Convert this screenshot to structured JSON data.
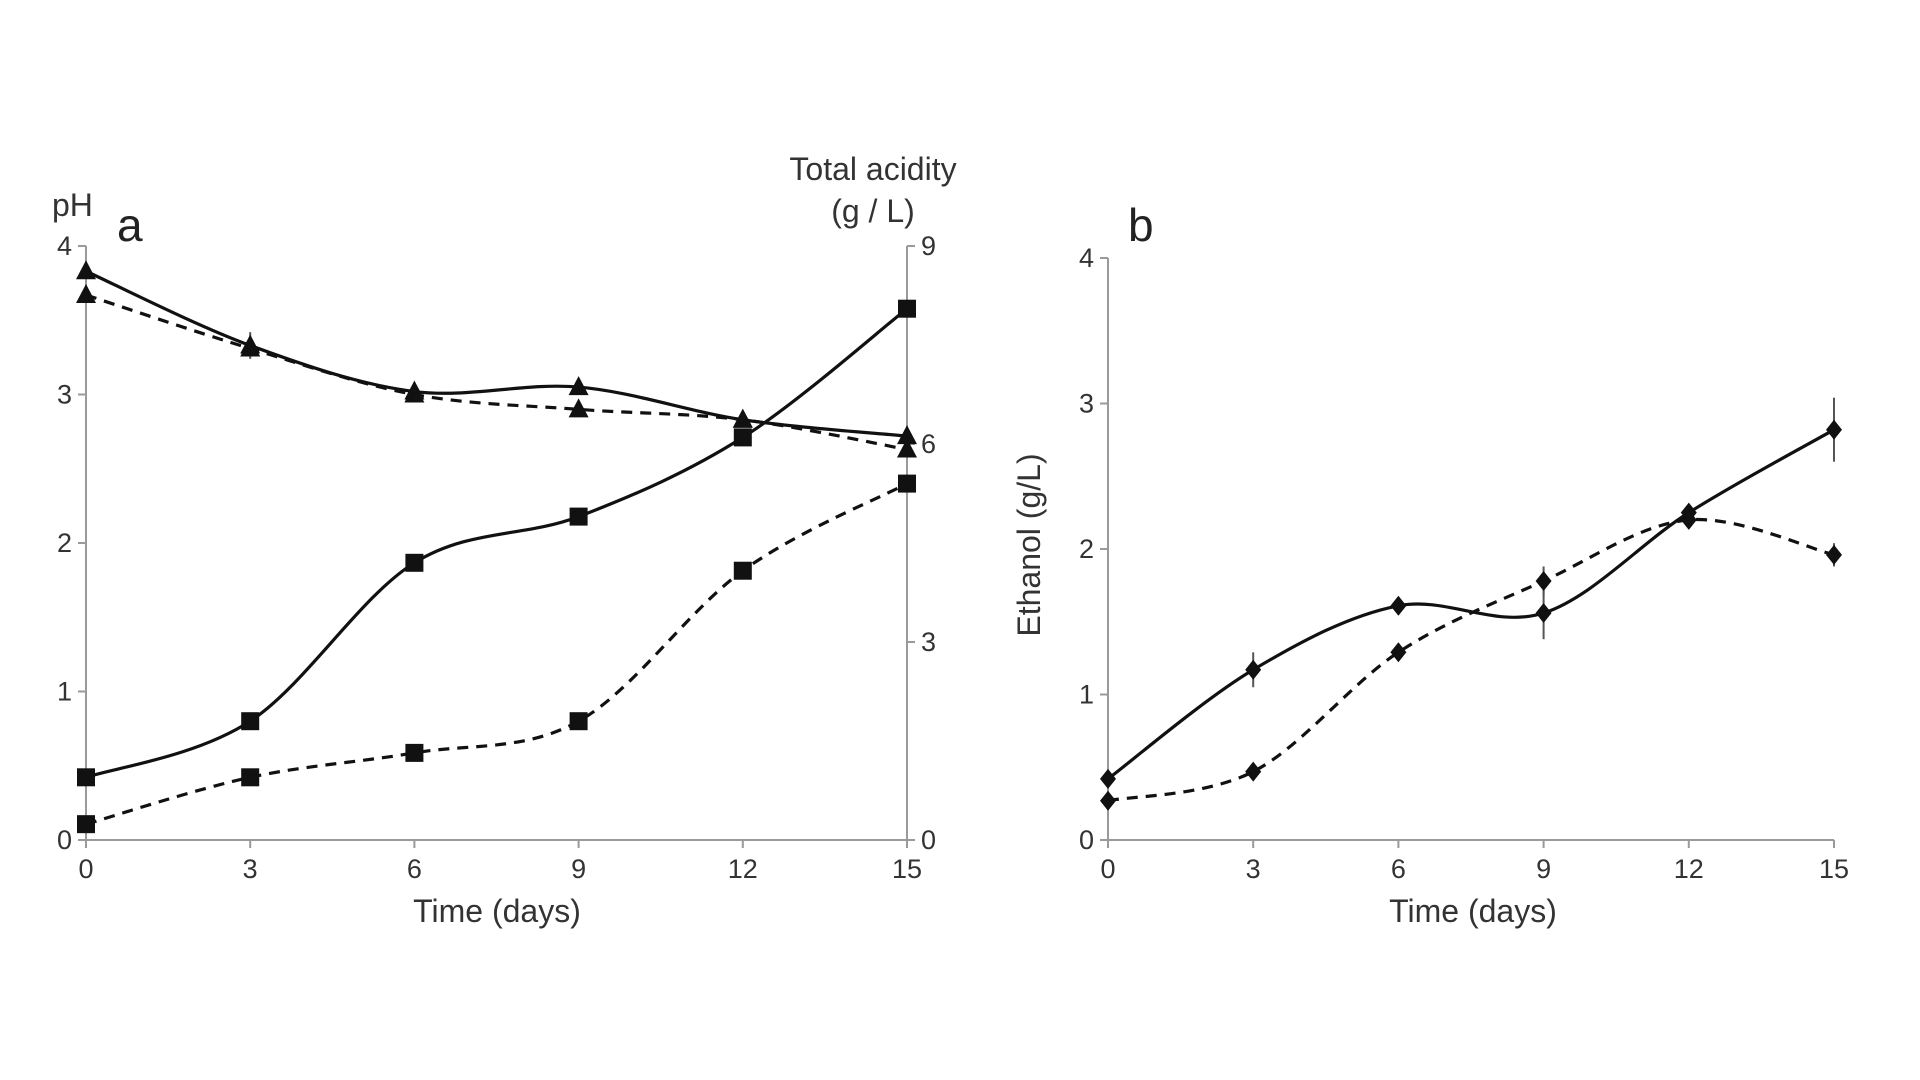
{
  "chart_data": [
    {
      "panel": "a",
      "type": "line",
      "panel_label": "a",
      "x": [
        0,
        3,
        6,
        9,
        12,
        15
      ],
      "xlabel": "Time (days)",
      "xlim": [
        0,
        15
      ],
      "xticks": [
        0,
        3,
        6,
        9,
        12,
        15
      ],
      "ylabel_left": "pH",
      "ylim_left": [
        0,
        4
      ],
      "yticks_left": [
        0,
        1,
        2,
        3,
        4
      ],
      "ylabel_right": [
        "Total acidity",
        "(g / L)"
      ],
      "ylim_right": [
        0,
        9
      ],
      "yticks_right": [
        0,
        3,
        6,
        9
      ],
      "grid": false,
      "legend": "none",
      "series": [
        {
          "marker": "triangle",
          "style": "solid",
          "axis": "left",
          "values": [
            3.83,
            3.33,
            3.02,
            3.05,
            2.83,
            2.72
          ],
          "error": [
            0,
            0.09,
            0,
            0,
            0,
            0
          ]
        },
        {
          "marker": "triangle",
          "style": "dashed",
          "axis": "left",
          "values": [
            3.67,
            3.31,
            3.0,
            2.9,
            2.83,
            2.63
          ],
          "error": [
            0,
            0,
            0,
            0,
            0,
            0
          ]
        },
        {
          "marker": "square",
          "style": "solid",
          "axis": "right",
          "values": [
            0.95,
            1.8,
            4.2,
            4.9,
            6.1,
            8.05
          ],
          "error": [
            0,
            0,
            0,
            0,
            0,
            0
          ]
        },
        {
          "marker": "square",
          "style": "dashed",
          "axis": "right",
          "values": [
            0.24,
            0.95,
            1.32,
            1.8,
            4.08,
            5.4
          ],
          "error": [
            0,
            0,
            0,
            0,
            0,
            0
          ]
        }
      ]
    },
    {
      "panel": "b",
      "type": "line",
      "panel_label": "b",
      "x": [
        0,
        3,
        6,
        9,
        12,
        15
      ],
      "xlabel": "Time (days)",
      "xlim": [
        0,
        15
      ],
      "xticks": [
        0,
        3,
        6,
        9,
        12,
        15
      ],
      "ylabel": "Ethanol (g/L)",
      "ylim": [
        0,
        4
      ],
      "yticks": [
        0,
        1,
        2,
        3,
        4
      ],
      "grid": false,
      "legend": "none",
      "series": [
        {
          "marker": "diamond",
          "style": "solid",
          "values": [
            0.42,
            1.17,
            1.61,
            1.56,
            2.25,
            2.82
          ],
          "error": [
            0,
            0.12,
            0,
            0.18,
            0,
            0.22
          ]
        },
        {
          "marker": "diamond",
          "style": "dashed",
          "values": [
            0.27,
            0.47,
            1.29,
            1.78,
            2.2,
            1.96
          ],
          "error": [
            0,
            0,
            0,
            0.1,
            0,
            0.08
          ]
        }
      ]
    }
  ]
}
